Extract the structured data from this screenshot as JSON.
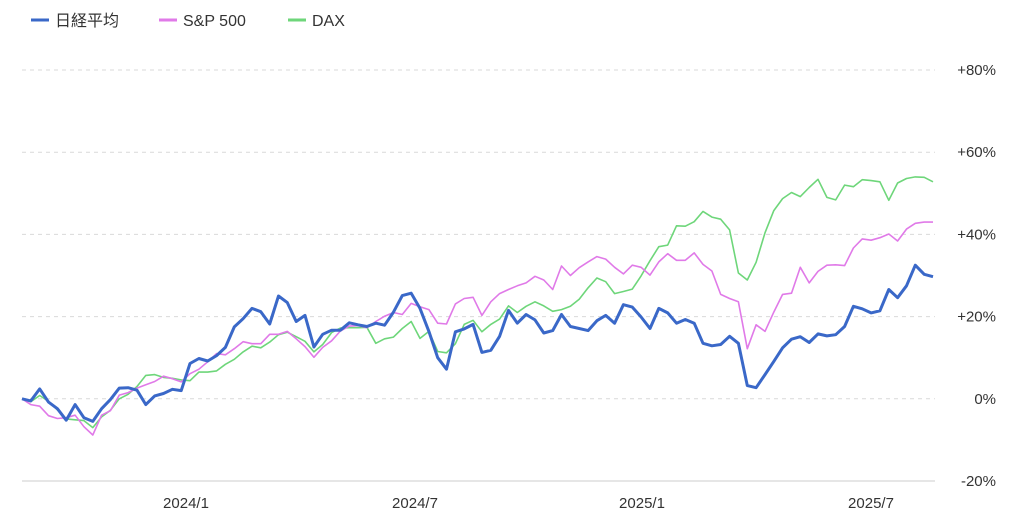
{
  "chart_data": {
    "type": "line",
    "title": "",
    "xlabel": "",
    "ylabel": "",
    "ylim": [
      -20,
      80
    ],
    "grid": true,
    "legend_position": "top-left",
    "x_ticks": [
      "2024/1",
      "2024/7",
      "2025/1",
      "2025/7"
    ],
    "y_ticks": [
      "+80%",
      "+60%",
      "+40%",
      "+20%",
      "0%",
      "-20%"
    ],
    "y_tick_values": [
      80,
      60,
      40,
      20,
      0,
      -20
    ],
    "series": [
      {
        "name": "日経平均",
        "color": "#3a68c8",
        "values": [
          0,
          -0.5,
          2.4,
          -0.8,
          -2.4,
          -5.2,
          -1.4,
          -4.6,
          -5.5,
          -2.4,
          -0.2,
          2.6,
          2.7,
          2.1,
          -1.4,
          0.7,
          1.3,
          2.3,
          2,
          8.6,
          9.8,
          9.2,
          10.5,
          12.5,
          17.5,
          19.5,
          22,
          21.2,
          18.2,
          25,
          23.4,
          18.8,
          20.3,
          12.6,
          15.7,
          16.7,
          16.7,
          18.5,
          18,
          17.6,
          18.4,
          17.9,
          21.1,
          25.1,
          25.7,
          22,
          16.4,
          10,
          7.2,
          16.3,
          17,
          18.1,
          11.3,
          11.8,
          15.2,
          21.5,
          18.4,
          20.5,
          19.2,
          16,
          16.6,
          20.5,
          17.6,
          17.1,
          16.6,
          19,
          20.3,
          18.4,
          22.9,
          22.3,
          19.9,
          17.1,
          22,
          20.9,
          18.4,
          19.3,
          18.4,
          13.5,
          12.9,
          13.2,
          15.2,
          13.5,
          3.2,
          2.7,
          5.9,
          9.1,
          12.4,
          14.5,
          15.1,
          13.7,
          15.8,
          15.3,
          15.6,
          17.6,
          22.5,
          21.9,
          20.9,
          21.4,
          26.6,
          24.6,
          27.5,
          32.5,
          30.3,
          29.7
        ]
      },
      {
        "name": "S&P 500",
        "color": "#e07ae8",
        "values": [
          0,
          -1.4,
          -1.8,
          -4.1,
          -4.8,
          -4.6,
          -4,
          -6.8,
          -8.8,
          -4,
          -2.9,
          0.9,
          1.5,
          2.6,
          3.4,
          4.2,
          5.5,
          4.9,
          4.1,
          6.1,
          7.2,
          9,
          11,
          10.7,
          12.2,
          13.9,
          13.4,
          13.4,
          15.7,
          15.7,
          16.4,
          14.6,
          12.7,
          10.1,
          12.5,
          14.1,
          16.5,
          17.7,
          17.8,
          17.3,
          18.8,
          20.1,
          21,
          20.5,
          23.2,
          22.4,
          21.7,
          18.4,
          18.2,
          23.1,
          24.4,
          24.7,
          20.3,
          23.6,
          25.6,
          26.6,
          27.5,
          28.2,
          29.8,
          28.9,
          26.6,
          32.3,
          30,
          31.9,
          33.3,
          34.6,
          34,
          32,
          30.4,
          32.5,
          32,
          30.1,
          33.3,
          35.3,
          33.7,
          33.7,
          35.5,
          32.7,
          31.1,
          25.4,
          24.4,
          23.6,
          12.2,
          18,
          16.4,
          21.1,
          25.4,
          25.7,
          32,
          28.2,
          31,
          32.5,
          32.6,
          32.4,
          36.7,
          38.9,
          38.6,
          39.2,
          40.1,
          38.4,
          41.3,
          42.7,
          43,
          43
        ]
      },
      {
        "name": "DAX",
        "color": "#6ed67a",
        "values": [
          0,
          -0.7,
          0.8,
          -0.6,
          -2.7,
          -4.9,
          -5.1,
          -5.3,
          -7,
          -4.4,
          -2.8,
          0,
          1.1,
          3,
          5.7,
          5.9,
          5.2,
          5,
          4.6,
          4.4,
          6.5,
          6.5,
          6.8,
          8.4,
          9.6,
          11.4,
          12.8,
          12.4,
          13.8,
          15.6,
          16.2,
          15.1,
          14,
          11.4,
          13.2,
          16.1,
          17.2,
          17.3,
          17.3,
          17.4,
          13.5,
          14.6,
          15,
          17.1,
          18.8,
          14.7,
          16.4,
          11.5,
          11.2,
          13.4,
          18.1,
          19.1,
          16.3,
          18.1,
          19.4,
          22.6,
          21,
          22.5,
          23.6,
          22.6,
          21.3,
          21.7,
          22.5,
          24.2,
          27,
          29.4,
          28.5,
          25.6,
          26.1,
          26.7,
          29.9,
          33.6,
          37,
          37.4,
          42.1,
          42,
          43.1,
          45.6,
          44.2,
          43.7,
          41.1,
          30.6,
          28.9,
          33.2,
          40.4,
          45.8,
          48.7,
          50.2,
          49.2,
          51.4,
          53.4,
          49,
          48.4,
          52,
          51.6,
          53.3,
          53.1,
          52.8,
          48.3,
          52.5,
          53.6,
          54,
          53.9,
          52.8
        ]
      }
    ]
  }
}
